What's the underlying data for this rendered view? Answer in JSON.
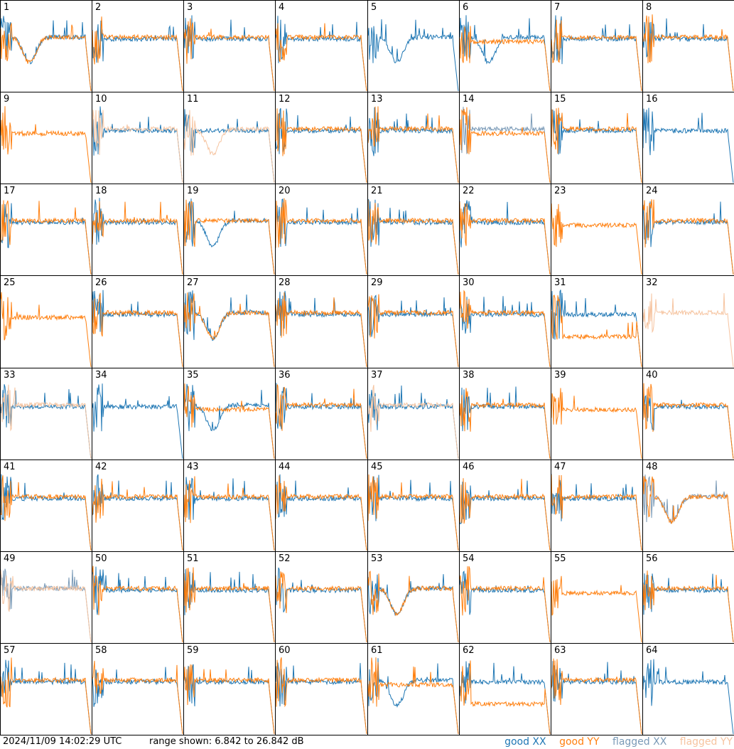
{
  "footer": {
    "timestamp": "2024/11/09 14:02:29 UTC",
    "range_text": "range shown: 6.842 to 26.842 dB"
  },
  "legend": [
    {
      "label": "good XX",
      "color": "#1f77b4"
    },
    {
      "label": "good YY",
      "color": "#ff7f0e"
    },
    {
      "label": "flagged XX",
      "color": "#7a9ab7"
    },
    {
      "label": "flagged YY",
      "color": "#f6c4a0"
    }
  ],
  "chart_data": {
    "type": "line",
    "grid": {
      "rows": 8,
      "cols": 8
    },
    "ylim": [
      6.842,
      26.842
    ],
    "units": "dB",
    "panel_labels": [
      "1",
      "2",
      "3",
      "4",
      "5",
      "6",
      "7",
      "8",
      "9",
      "10",
      "11",
      "12",
      "13",
      "14",
      "15",
      "16",
      "17",
      "18",
      "19",
      "20",
      "21",
      "22",
      "23",
      "24",
      "25",
      "26",
      "27",
      "28",
      "29",
      "30",
      "31",
      "32",
      "33",
      "34",
      "35",
      "36",
      "37",
      "38",
      "39",
      "40",
      "41",
      "42",
      "43",
      "44",
      "45",
      "46",
      "47",
      "48",
      "49",
      "50",
      "51",
      "52",
      "53",
      "54",
      "55",
      "56",
      "57",
      "58",
      "59",
      "60",
      "61",
      "62",
      "63",
      "64"
    ],
    "panels": {
      "1": {
        "xx": "good",
        "yy": "good",
        "xx_shape": "dip",
        "yy_shape": "dip"
      },
      "5": {
        "xx": "good",
        "yy": "good",
        "xx_shape": "dip",
        "yy_shape": "absent"
      },
      "6": {
        "xx": "good",
        "yy": "good",
        "xx_shape": "dip",
        "yy_shape": "flat_high"
      },
      "9": {
        "xx": "flagged",
        "yy": "good",
        "xx_shape": "absent",
        "yy_shape": "flat_high"
      },
      "10": {
        "xx": "good",
        "yy": "flagged",
        "xx_shape": "noisy",
        "yy_shape": "flat"
      },
      "11": {
        "xx": "good",
        "yy": "flagged",
        "xx_shape": "noisy",
        "yy_shape": "dip"
      },
      "14": {
        "xx": "flagged",
        "yy": "good",
        "xx_shape": "flat",
        "yy_shape": "flat_high"
      },
      "16": {
        "xx": "good",
        "yy": "good",
        "xx_shape": "noisy",
        "yy_shape": "absent"
      },
      "19": {
        "xx": "good",
        "yy": "good",
        "xx_shape": "dip",
        "yy_shape": "flat"
      },
      "23": {
        "xx": "flagged",
        "yy": "good",
        "xx_shape": "absent",
        "yy_shape": "flat_high"
      },
      "25": {
        "xx": "flagged",
        "yy": "good",
        "xx_shape": "absent",
        "yy_shape": "flat_high"
      },
      "27": {
        "xx": "good",
        "yy": "good",
        "xx_shape": "dip",
        "yy_shape": "dip"
      },
      "31": {
        "xx": "good",
        "yy": "good",
        "xx_shape": "noisy",
        "yy_shape": "low"
      },
      "32": {
        "xx": "flagged",
        "yy": "flagged",
        "xx_shape": "absent",
        "yy_shape": "flat"
      },
      "33": {
        "xx": "good",
        "yy": "flagged",
        "xx_shape": "noisy",
        "yy_shape": "flat"
      },
      "34": {
        "xx": "good",
        "yy": "good",
        "xx_shape": "noisy",
        "yy_shape": "absent"
      },
      "35": {
        "xx": "good",
        "yy": "good",
        "xx_shape": "dip",
        "yy_shape": "flat_high"
      },
      "37": {
        "xx": "good",
        "yy": "flagged",
        "xx_shape": "noisy",
        "yy_shape": "flat"
      },
      "39": {
        "xx": "good",
        "yy": "good",
        "xx_shape": "absent",
        "yy_shape": "flat_high"
      },
      "48": {
        "xx": "flagged",
        "yy": "good",
        "xx_shape": "dip",
        "yy_shape": "dip"
      },
      "49": {
        "xx": "flagged",
        "yy": "flagged",
        "xx_shape": "flat",
        "yy_shape": "flat"
      },
      "53": {
        "xx": "good",
        "yy": "good",
        "xx_shape": "dip",
        "yy_shape": "dip"
      },
      "55": {
        "xx": "good",
        "yy": "good",
        "xx_shape": "absent",
        "yy_shape": "flat_high"
      },
      "61": {
        "xx": "good",
        "yy": "good",
        "xx_shape": "dip",
        "yy_shape": "flat_high"
      },
      "62": {
        "xx": "good",
        "yy": "good",
        "xx_shape": "noisy",
        "yy_shape": "low"
      },
      "64": {
        "xx": "good",
        "yy": "good",
        "xx_shape": "noisy",
        "yy_shape": "absent"
      }
    },
    "default_panel": {
      "xx": "good",
      "yy": "good",
      "xx_shape": "noisy",
      "yy_shape": "flat"
    }
  }
}
